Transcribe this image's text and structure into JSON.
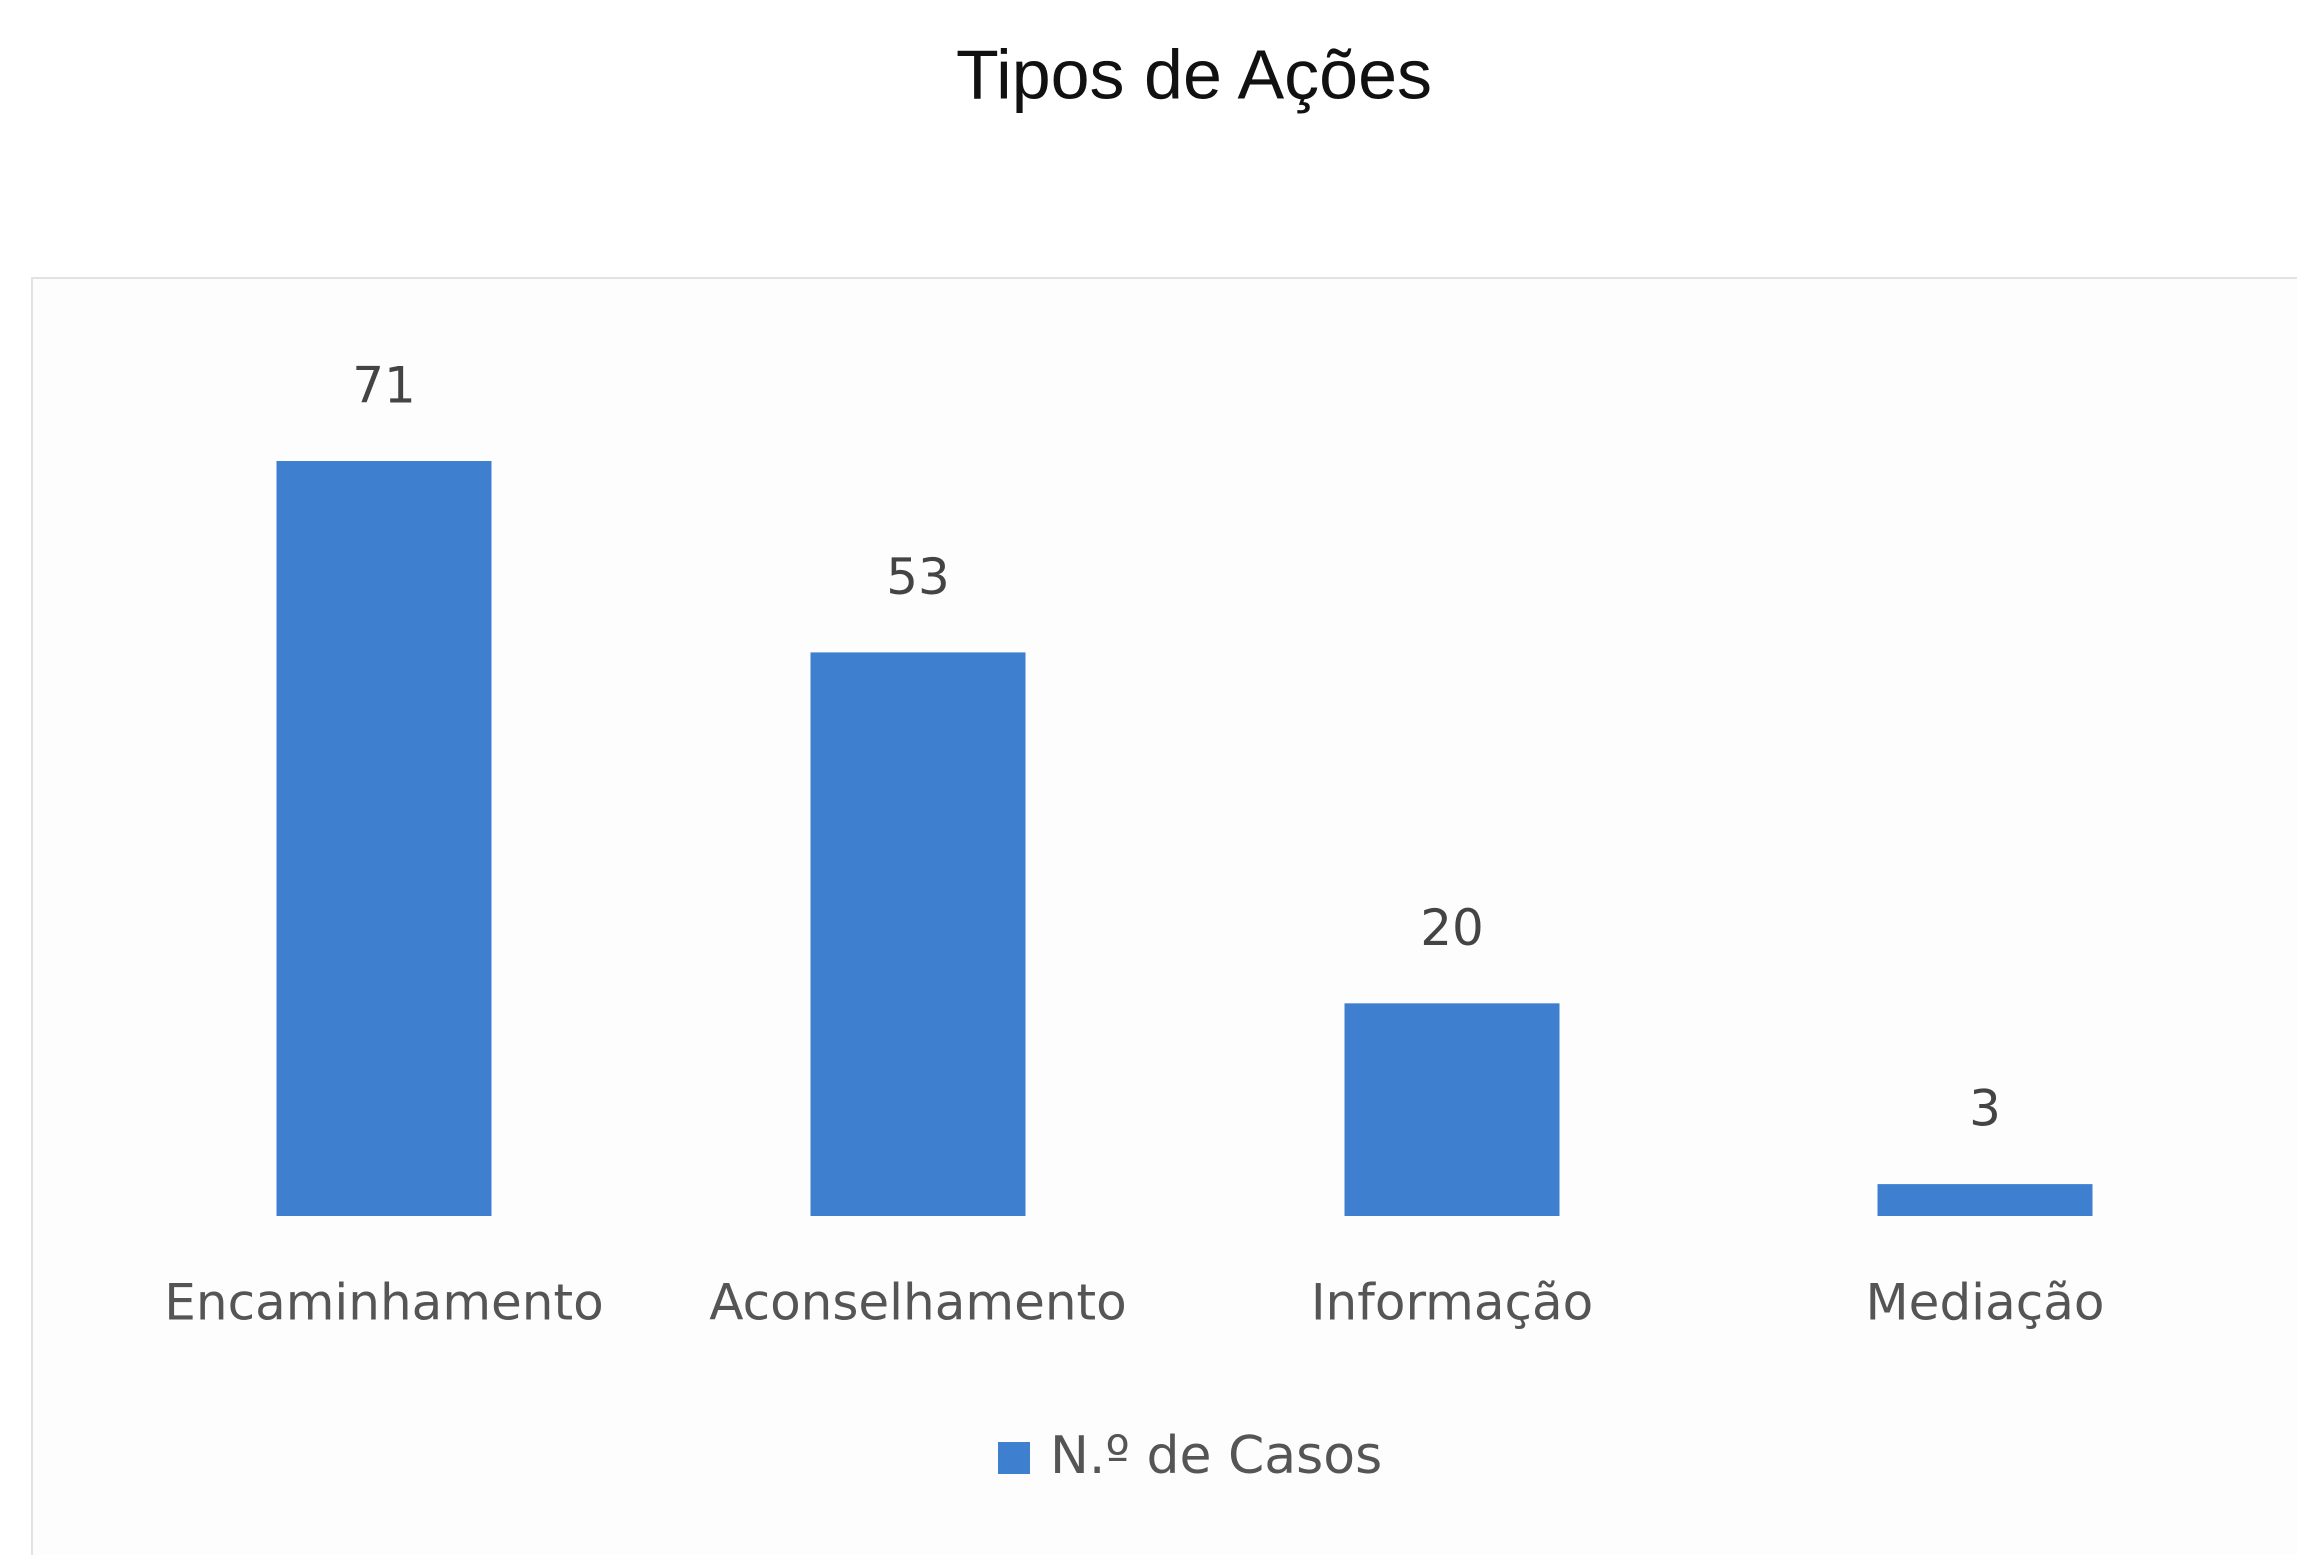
{
  "chart_data": {
    "type": "bar",
    "title": "Tipos de Ações",
    "categories": [
      "Encaminhamento",
      "Aconselhamento",
      "Informação",
      "Mediação"
    ],
    "series": [
      {
        "name": "N.º de Casos",
        "color": "#3f7fcf",
        "values": [
          71,
          53,
          20,
          3
        ]
      }
    ]
  }
}
